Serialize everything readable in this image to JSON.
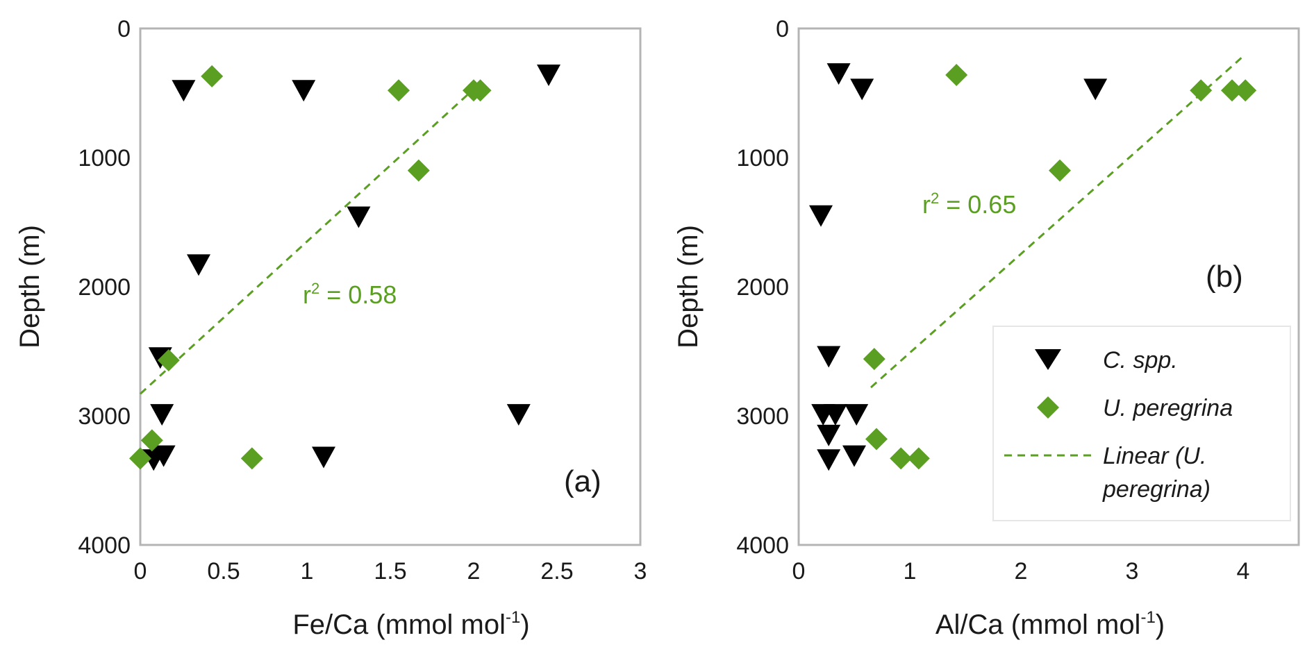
{
  "colors": {
    "c_spp": "#000000",
    "u_peregrina": "#5a9e22",
    "frame": "#b4b4b4",
    "legend_border": "#e6e6e6"
  },
  "chart_data": [
    {
      "type": "scatter",
      "panel_label": "(a)",
      "xlabel_main": "Fe/Ca (mmol mol",
      "xlabel_sup": "-1",
      "xlabel_end": ")",
      "ylabel": "Depth (m)",
      "xlim": [
        0,
        3
      ],
      "ylim": [
        0,
        4000
      ],
      "y_inverted": true,
      "x_ticks": [
        0,
        0.5,
        1,
        1.5,
        2,
        2.5,
        3
      ],
      "x_tick_labels": [
        "0",
        "0.5",
        "1",
        "1.5",
        "2",
        "2.5",
        "3"
      ],
      "y_ticks": [
        0,
        1000,
        2000,
        3000,
        4000
      ],
      "y_tick_labels": [
        "0",
        "1000",
        "2000",
        "3000",
        "4000"
      ],
      "series": [
        {
          "name": "C. spp.",
          "marker": "triangle-down",
          "points": [
            [
              0.26,
              480
            ],
            [
              0.98,
              480
            ],
            [
              2.45,
              360
            ],
            [
              1.31,
              1460
            ],
            [
              0.35,
              1830
            ],
            [
              0.12,
              2550
            ],
            [
              0.13,
              2990
            ],
            [
              2.27,
              2990
            ],
            [
              0.08,
              3340
            ],
            [
              0.14,
              3310
            ],
            [
              1.1,
              3320
            ]
          ]
        },
        {
          "name": "U. peregrina",
          "marker": "diamond",
          "points": [
            [
              0.43,
              370
            ],
            [
              1.55,
              480
            ],
            [
              2.0,
              480
            ],
            [
              2.04,
              480
            ],
            [
              1.67,
              1100
            ],
            [
              0.17,
              2570
            ],
            [
              0.07,
              3190
            ],
            [
              0.0,
              3330
            ],
            [
              0.67,
              3330
            ]
          ]
        }
      ],
      "trendline": {
        "name": "Linear (U. peregrina)",
        "x": [
          0.0,
          2.0
        ],
        "y": [
          2830,
          470
        ]
      },
      "annotation": {
        "text_main": "r",
        "text_sup": "2",
        "text_end": " = 0.58"
      }
    },
    {
      "type": "scatter",
      "panel_label": "(b)",
      "xlabel_main": "Al/Ca (mmol mol",
      "xlabel_sup": "-1",
      "xlabel_end": ")",
      "ylabel": "Depth (m)",
      "xlim": [
        0,
        4.5
      ],
      "ylim": [
        0,
        4000
      ],
      "y_inverted": true,
      "x_ticks": [
        0,
        1,
        2,
        3,
        4
      ],
      "x_tick_labels": [
        "0",
        "1",
        "2",
        "3",
        "4"
      ],
      "y_ticks": [
        0,
        1000,
        2000,
        3000,
        4000
      ],
      "y_tick_labels": [
        "0",
        "1000",
        "2000",
        "3000",
        "4000"
      ],
      "series": [
        {
          "name": "C. spp.",
          "marker": "triangle-down",
          "points": [
            [
              0.36,
              350
            ],
            [
              0.57,
              470
            ],
            [
              2.67,
              470
            ],
            [
              0.2,
              1450
            ],
            [
              0.27,
              2540
            ],
            [
              0.22,
              2990
            ],
            [
              0.33,
              2990
            ],
            [
              0.52,
              2990
            ],
            [
              0.27,
              3150
            ],
            [
              0.27,
              3340
            ],
            [
              0.5,
              3310
            ]
          ]
        },
        {
          "name": "U. peregrina",
          "marker": "diamond",
          "points": [
            [
              1.42,
              360
            ],
            [
              3.62,
              480
            ],
            [
              3.9,
              480
            ],
            [
              4.02,
              480
            ],
            [
              2.35,
              1100
            ],
            [
              0.68,
              2560
            ],
            [
              0.7,
              3180
            ],
            [
              0.92,
              3330
            ],
            [
              1.08,
              3330
            ]
          ]
        }
      ],
      "trendline": {
        "name": "Linear (U. peregrina)",
        "x": [
          0.65,
          4.02
        ],
        "y": [
          2780,
          200
        ]
      },
      "annotation": {
        "text_main": "r",
        "text_sup": "2",
        "text_end": " = 0.65"
      }
    }
  ],
  "legend": {
    "items": [
      {
        "label": "C. spp.",
        "marker": "triangle-down"
      },
      {
        "label": "U. peregrina",
        "marker": "diamond"
      },
      {
        "label_line1": "Linear (U.",
        "label_line2": "peregrina)",
        "marker": "dashed-line"
      }
    ]
  }
}
